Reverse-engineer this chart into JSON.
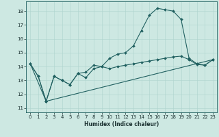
{
  "xlabel": "Humidex (Indice chaleur)",
  "xlim": [
    -0.5,
    23.5
  ],
  "ylim": [
    10.7,
    18.7
  ],
  "yticks": [
    11,
    12,
    13,
    14,
    15,
    16,
    17,
    18
  ],
  "xticks": [
    0,
    1,
    2,
    3,
    4,
    5,
    6,
    7,
    8,
    9,
    10,
    11,
    12,
    13,
    14,
    15,
    16,
    17,
    18,
    19,
    20,
    21,
    22,
    23
  ],
  "background_color": "#cde8e2",
  "grid_color": "#aed4ce",
  "line_color": "#206060",
  "line1_x": [
    0,
    1,
    2,
    3,
    4,
    5,
    6,
    7,
    8,
    9,
    10,
    11,
    12,
    13,
    14,
    15,
    16,
    17,
    18,
    19,
    20,
    21,
    22,
    23
  ],
  "line1_y": [
    14.2,
    13.3,
    11.5,
    13.3,
    13.0,
    12.7,
    13.5,
    13.6,
    14.1,
    14.0,
    14.6,
    14.9,
    15.0,
    15.5,
    16.6,
    17.7,
    18.2,
    18.1,
    18.0,
    17.4,
    14.6,
    14.2,
    14.1,
    14.5
  ],
  "line2_x": [
    0,
    1,
    2,
    3,
    4,
    5,
    6,
    7,
    8,
    9,
    10,
    11,
    12,
    13,
    14,
    15,
    16,
    17,
    18,
    19,
    20,
    21,
    22,
    23
  ],
  "line2_y": [
    14.2,
    13.3,
    11.5,
    13.3,
    13.0,
    12.7,
    13.5,
    13.2,
    13.85,
    14.0,
    13.85,
    14.0,
    14.1,
    14.2,
    14.3,
    14.4,
    14.5,
    14.6,
    14.7,
    14.75,
    14.5,
    14.15,
    14.1,
    14.5
  ],
  "line3_x": [
    0,
    2,
    23
  ],
  "line3_y": [
    14.2,
    11.5,
    14.5
  ],
  "marker_style": "D",
  "marker_size": 2.0,
  "linewidth": 0.8,
  "tick_fontsize": 5.0,
  "xlabel_fontsize": 5.5
}
